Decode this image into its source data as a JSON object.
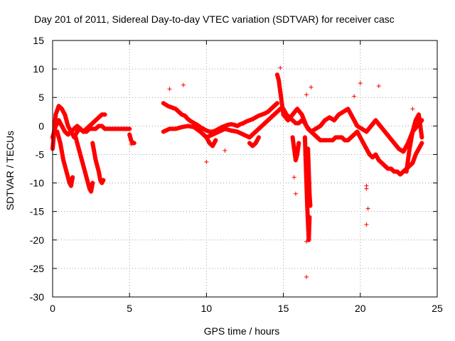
{
  "chart_data": {
    "type": "scatter",
    "title": "Day 201 of 2011, Sidereal Day-to-day VTEC variation (SDTVAR) for receiver casc",
    "xlabel": "GPS time / hours",
    "ylabel": "SDTVAR / TECUs",
    "xlim": [
      0,
      25
    ],
    "ylim": [
      -30,
      15
    ],
    "xticks": [
      0,
      5,
      10,
      15,
      20,
      25
    ],
    "yticks": [
      15,
      10,
      5,
      0,
      -5,
      -10,
      -15,
      -20,
      -25,
      -30
    ],
    "grid": true,
    "marker": "+",
    "color": "#ff0000",
    "series": [
      {
        "name": "SDTVAR",
        "segments": [
          {
            "x": [
              0.0,
              0.2,
              0.4,
              0.6,
              0.8,
              1.0,
              1.2,
              1.4,
              1.6,
              1.8,
              2.0,
              2.2,
              2.4,
              2.6,
              2.8,
              3.0,
              3.2,
              3.4
            ],
            "y": [
              -4,
              2,
              3.5,
              3,
              2,
              0,
              -1,
              -2,
              -1,
              -0.5,
              -1,
              -0.5,
              0,
              0.5,
              1,
              1.5,
              2,
              2
            ]
          },
          {
            "x": [
              0.0,
              0.2,
              0.4,
              0.6,
              0.8,
              1.0,
              1.2,
              1.4,
              1.6,
              1.8,
              2.0,
              2.2,
              2.4,
              2.6,
              2.8,
              3.0,
              3.2,
              3.4,
              3.6,
              3.8,
              4.0,
              4.2,
              4.4,
              4.6,
              4.8,
              5.0
            ],
            "y": [
              -2,
              0,
              1,
              0,
              -1,
              -1.5,
              -1,
              -0.5,
              0,
              -0.5,
              -1,
              -1,
              -0.5,
              -0.5,
              -0.5,
              0,
              0,
              -0.5,
              -0.5,
              -0.5,
              -0.5,
              -0.5,
              -0.5,
              -0.5,
              -0.5,
              -0.5
            ]
          },
          {
            "x": [
              0.3,
              0.5,
              0.7,
              0.9,
              1.0,
              1.1,
              1.2,
              1.3
            ],
            "y": [
              -1,
              -3,
              -6,
              -8,
              -9,
              -10,
              -10.5,
              -9
            ]
          },
          {
            "x": [
              1.5,
              1.7,
              1.9,
              2.1,
              2.3,
              2.4,
              2.5,
              2.6
            ],
            "y": [
              -2,
              -4,
              -6,
              -8,
              -10,
              -11,
              -11.5,
              -10
            ]
          },
          {
            "x": [
              2.6,
              2.8,
              3.0,
              3.1,
              3.2,
              3.3
            ],
            "y": [
              -3,
              -6,
              -8,
              -9.5,
              -10,
              -9.5
            ]
          },
          {
            "x": [
              5.0,
              5.1,
              5.2,
              5.3
            ],
            "y": [
              -1.5,
              -2.5,
              -3,
              -3
            ]
          },
          {
            "x": [
              7.2,
              7.5,
              7.8,
              8.0,
              8.2,
              8.4,
              8.6,
              8.8,
              9.0,
              9.2,
              9.4,
              9.6,
              9.8,
              10.0,
              10.2,
              10.4,
              10.6,
              10.8,
              11.0,
              11.2,
              11.4,
              11.6,
              11.8,
              12.0,
              12.2,
              12.4,
              12.6,
              12.8,
              13.0,
              13.2,
              13.4,
              13.6,
              13.8,
              14.0,
              14.2,
              14.4,
              14.6
            ],
            "y": [
              4,
              3.5,
              3.2,
              3,
              2.5,
              2,
              1.8,
              1.2,
              0.8,
              0.5,
              0.2,
              -0.2,
              -0.5,
              -0.8,
              -1,
              -1,
              -0.8,
              -0.5,
              -0.2,
              0,
              0.2,
              0.3,
              0.2,
              0,
              0.3,
              0.5,
              0.8,
              1,
              1.2,
              1.5,
              1.8,
              2,
              2.2,
              2.5,
              3,
              3.5,
              4
            ]
          },
          {
            "x": [
              7.2,
              7.6,
              8.0,
              8.4,
              8.8,
              9.2,
              9.6,
              10.0,
              10.4,
              10.8,
              11.2,
              11.6,
              12.0,
              12.4,
              12.8,
              13.2,
              13.6,
              14.0,
              14.4,
              14.8
            ],
            "y": [
              -1,
              -0.5,
              -0.5,
              -0.2,
              0,
              -0.2,
              -1,
              -2,
              -1.5,
              -1,
              -0.5,
              -0.8,
              -1,
              -1.5,
              -2,
              -1,
              0,
              1,
              2,
              3
            ]
          },
          {
            "x": [
              10.0,
              10.2,
              10.4,
              10.6
            ],
            "y": [
              -2,
              -3,
              -3.5,
              -2.5
            ]
          },
          {
            "x": [
              12.8,
              13.0,
              13.2,
              13.4
            ],
            "y": [
              -3,
              -3.5,
              -3,
              -2
            ]
          },
          {
            "x": [
              14.6,
              14.7,
              14.8,
              14.9,
              15.0
            ],
            "y": [
              9,
              8,
              6,
              4,
              2
            ]
          },
          {
            "x": [
              15.0,
              15.2,
              15.4,
              15.6,
              15.8,
              16.0,
              16.2,
              16.4,
              16.6,
              16.8,
              17.0,
              17.2,
              17.4,
              17.6,
              17.8,
              18.0,
              18.2,
              18.4,
              18.6,
              18.8,
              19.0,
              19.2,
              19.4,
              19.6,
              19.8,
              20.0,
              20.2,
              20.4,
              20.6,
              20.8,
              21.0,
              21.2,
              21.4,
              21.6,
              21.8,
              22.0,
              22.2,
              22.4,
              22.6,
              22.8,
              23.0,
              23.2,
              23.4,
              23.6,
              23.8,
              24.0
            ],
            "y": [
              3,
              2,
              1.5,
              1,
              0.5,
              0.5,
              1,
              0.5,
              -0.5,
              -1,
              -1.5,
              -2,
              -2.5,
              -2.5,
              -2.5,
              -2.5,
              -2.5,
              -2,
              -2,
              -2,
              -2.5,
              -2.5,
              -2,
              -1.5,
              -1,
              -2,
              -3,
              -4,
              -5,
              -5.5,
              -5,
              -6,
              -6.5,
              -7,
              -7.5,
              -7.5,
              -8,
              -8,
              -8.5,
              -8,
              -7.5,
              -7,
              -6.5,
              -5,
              -4,
              -3
            ]
          },
          {
            "x": [
              15.0,
              15.3,
              15.6,
              15.9,
              16.2,
              16.5,
              16.8,
              17.1,
              17.4,
              17.7,
              18.0,
              18.3,
              18.6,
              18.9,
              19.2,
              19.5,
              19.8,
              20.1,
              20.4,
              20.7,
              21.0,
              21.3,
              21.6,
              21.9,
              22.2,
              22.5,
              22.8,
              23.1,
              23.4,
              23.7,
              24.0
            ],
            "y": [
              2,
              1,
              2,
              3,
              2,
              0,
              -1,
              -0.5,
              0,
              1,
              1.5,
              1,
              2,
              2.5,
              3,
              1.5,
              0,
              -0.5,
              -1,
              0,
              1,
              0,
              -1,
              -2,
              -3,
              -4,
              -4.5,
              -3,
              -1,
              0,
              1
            ]
          },
          {
            "x": [
              15.6,
              15.7,
              15.8,
              15.9,
              16.0
            ],
            "y": [
              -2,
              -4,
              -6,
              -5,
              -3
            ]
          },
          {
            "x": [
              16.4,
              16.45,
              16.5,
              16.55,
              16.6,
              16.65,
              16.7
            ],
            "y": [
              -2,
              -6,
              -10,
              -14,
              -17,
              -20,
              -16
            ]
          },
          {
            "x": [
              16.6,
              16.65,
              16.7,
              16.75
            ],
            "y": [
              -4,
              -8,
              -12,
              -14
            ]
          },
          {
            "x": [
              23.0,
              23.2,
              23.4,
              23.6,
              23.8,
              24.0
            ],
            "y": [
              -8,
              -4,
              -1,
              1,
              2,
              -2
            ]
          }
        ],
        "points": [
          {
            "x": 14.8,
            "y": 10.2
          },
          {
            "x": 8.5,
            "y": 7.2
          },
          {
            "x": 7.6,
            "y": 6.5
          },
          {
            "x": 16.8,
            "y": 6.8
          },
          {
            "x": 21.2,
            "y": 7.0
          },
          {
            "x": 20.0,
            "y": 7.5
          },
          {
            "x": 19.6,
            "y": 5.2
          },
          {
            "x": 16.5,
            "y": 5.5
          },
          {
            "x": 23.4,
            "y": 3.0
          },
          {
            "x": 10.0,
            "y": -6.3
          },
          {
            "x": 11.2,
            "y": -4.3
          },
          {
            "x": 15.7,
            "y": -9.0
          },
          {
            "x": 15.8,
            "y": -11.9
          },
          {
            "x": 20.4,
            "y": -11.0
          },
          {
            "x": 20.5,
            "y": -14.5
          },
          {
            "x": 20.4,
            "y": -17.3
          },
          {
            "x": 16.5,
            "y": -26.5
          },
          {
            "x": 16.5,
            "y": -20.3
          },
          {
            "x": 20.4,
            "y": -10.5
          },
          {
            "x": 5.1,
            "y": -3.2
          }
        ]
      }
    ]
  }
}
